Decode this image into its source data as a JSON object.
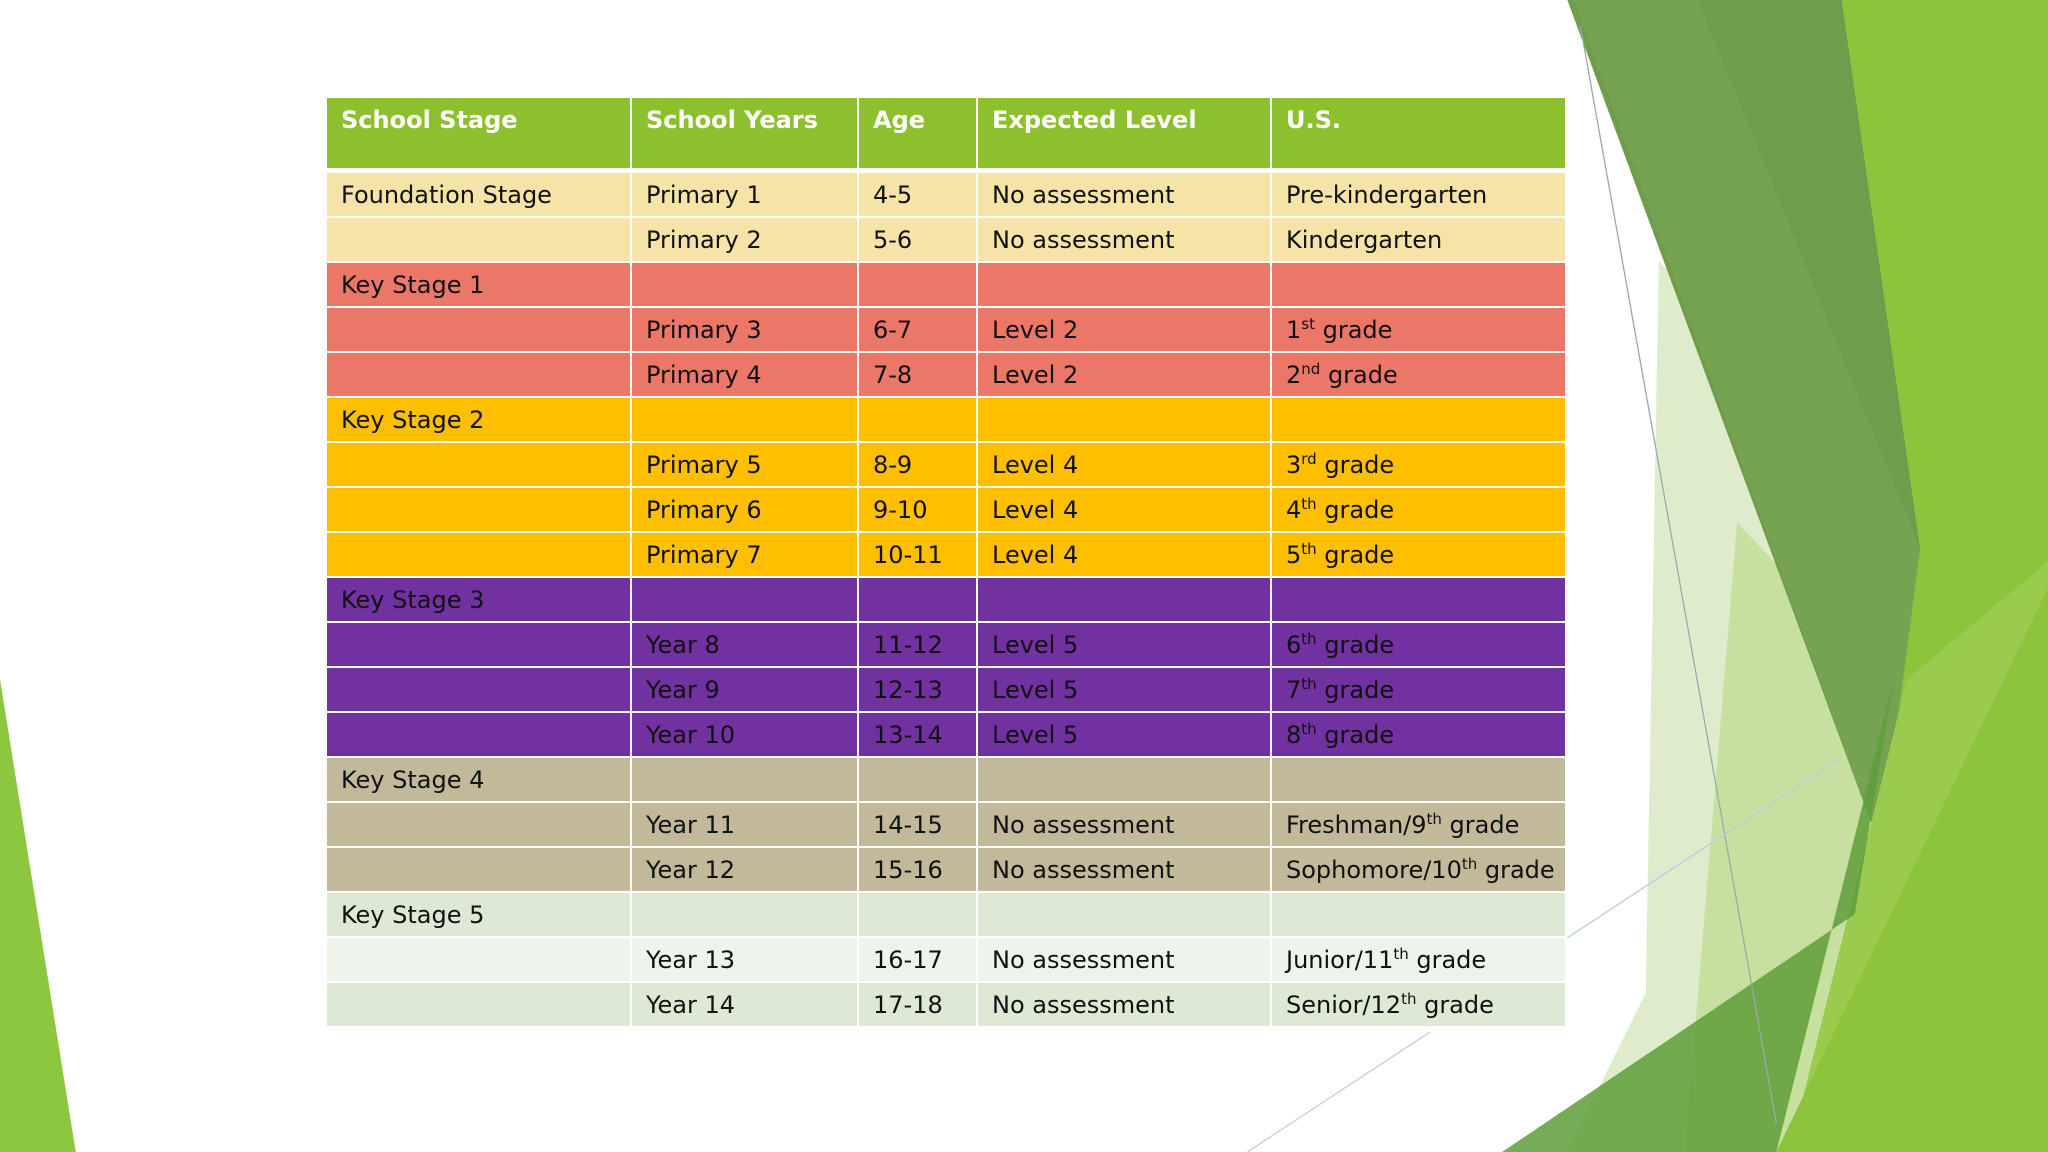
{
  "table": {
    "header": [
      "School Stage",
      "School Years",
      "Age",
      "Expected Level",
      "U.S."
    ],
    "rows": [
      [
        "Foundation Stage",
        "Primary 1",
        "4-5",
        "No assessment",
        "Pre-kindergarten"
      ],
      [
        "",
        "Primary 2",
        "5-6",
        "No assessment",
        "Kindergarten"
      ],
      [
        "Key Stage 1",
        "",
        "",
        "",
        ""
      ],
      [
        "",
        "Primary 3",
        "6-7",
        "Level 2",
        [
          "1",
          "st",
          " grade"
        ]
      ],
      [
        "",
        "Primary 4",
        "7-8",
        "Level 2",
        [
          "2",
          "nd",
          " grade"
        ]
      ],
      [
        "Key Stage 2",
        "",
        "",
        "",
        ""
      ],
      [
        "",
        "Primary 5",
        "8-9",
        "Level 4",
        [
          "3",
          "rd",
          " grade"
        ]
      ],
      [
        "",
        "Primary 6",
        "9-10",
        "Level 4",
        [
          "4",
          "th",
          " grade"
        ]
      ],
      [
        "",
        "Primary 7",
        "10-11",
        "Level 4",
        [
          "5",
          "th",
          " grade"
        ]
      ],
      [
        "Key Stage 3",
        "",
        "",
        "",
        ""
      ],
      [
        "",
        "Year 8",
        "11-12",
        "Level 5",
        [
          "6",
          "th",
          " grade"
        ]
      ],
      [
        "",
        "Year 9",
        "12-13",
        "Level 5",
        [
          "7",
          "th",
          " grade"
        ]
      ],
      [
        "",
        "Year 10",
        "13-14",
        "Level 5",
        [
          "8",
          "th",
          " grade"
        ]
      ],
      [
        "Key Stage 4",
        "",
        "",
        "",
        ""
      ],
      [
        "",
        "Year 11",
        "14-15",
        "No assessment",
        [
          "Freshman/9",
          "th",
          " grade"
        ]
      ],
      [
        "",
        "Year 12",
        "15-16",
        "No assessment",
        [
          "Sophomore/10",
          "th",
          " grade"
        ]
      ],
      [
        "Key Stage 5",
        "",
        "",
        "",
        ""
      ],
      [
        "",
        "Year 13",
        "16-17",
        "No assessment",
        [
          "Junior/11",
          "th",
          " grade"
        ]
      ],
      [
        "",
        "Year 14",
        "17-18",
        "No assessment",
        [
          "Senior/12",
          "th",
          " grade"
        ]
      ]
    ]
  }
}
